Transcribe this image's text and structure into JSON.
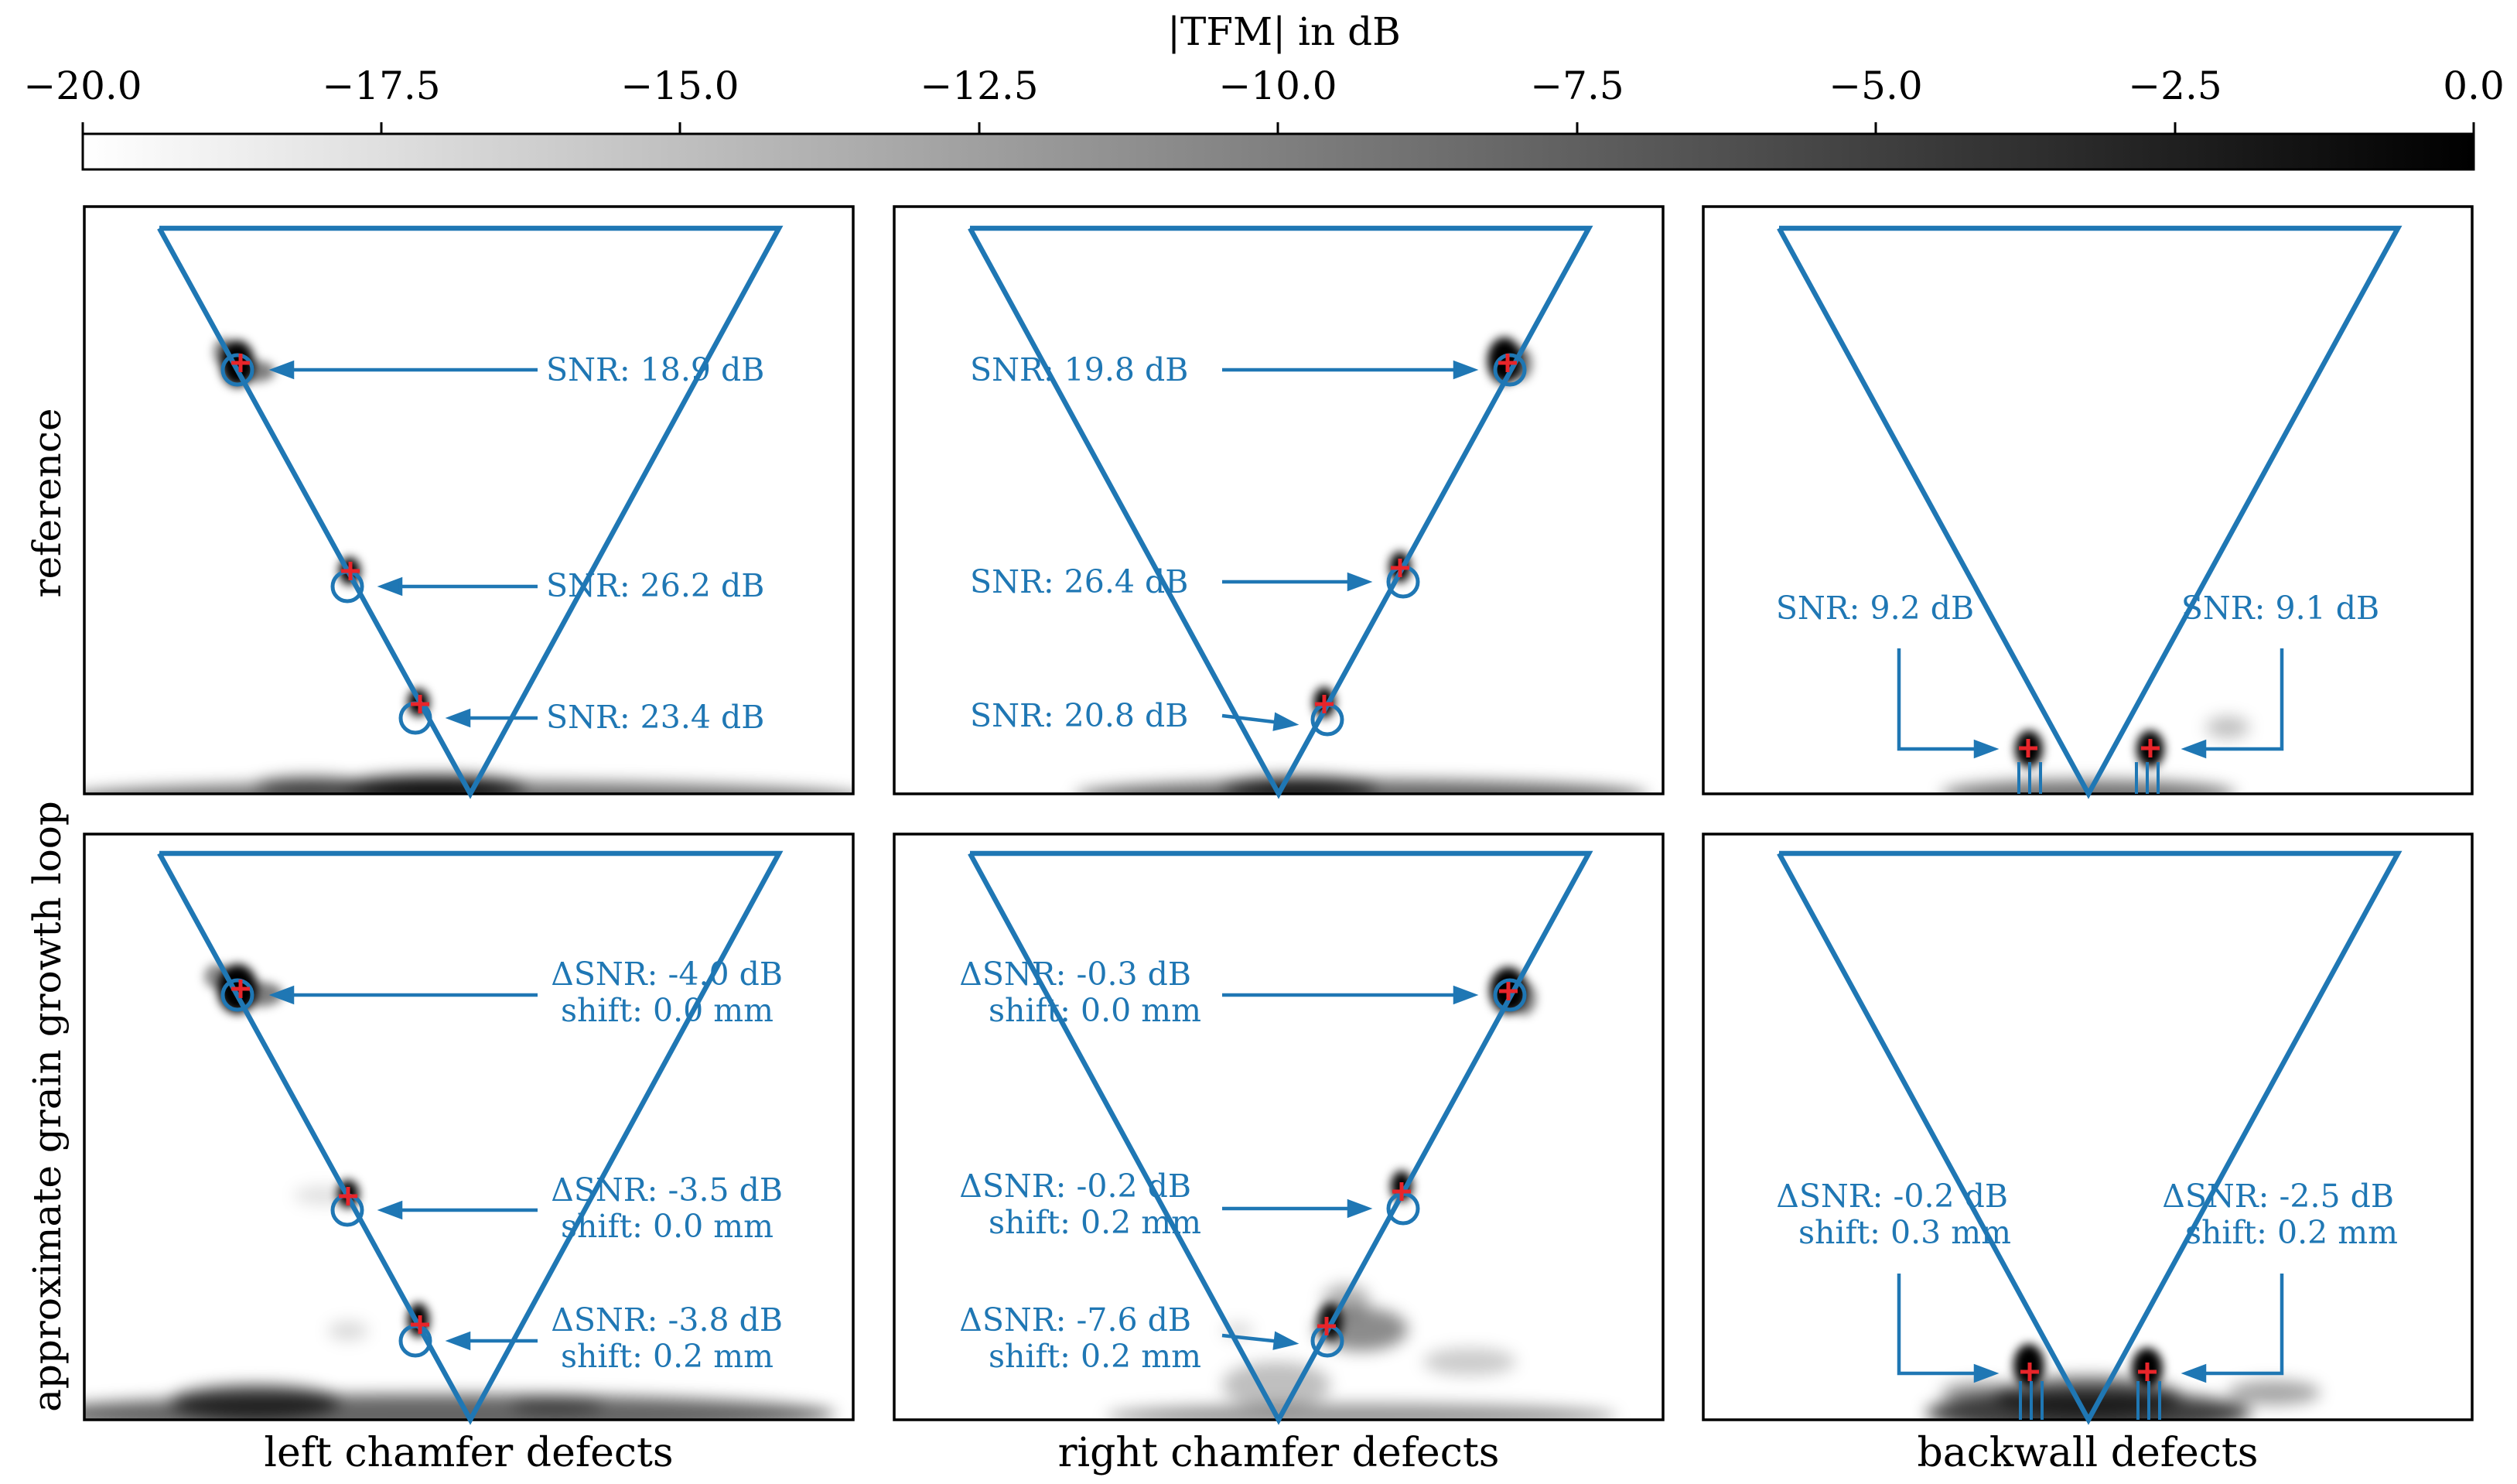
{
  "colorbar": {
    "label": "|TFM| in dB",
    "tick_labels": [
      "−20.0",
      "−17.5",
      "−15.0",
      "−12.5",
      "−10.0",
      "−7.5",
      "−5.0",
      "−2.5",
      "0.0"
    ],
    "range": [
      -20.0,
      0.0
    ]
  },
  "row_labels": [
    "reference",
    "approximate grain growth loop"
  ],
  "column_labels": [
    "left chamfer defects",
    "right chamfer defects",
    "backwall defects"
  ],
  "panels": {
    "ref_left": {
      "annotations": [
        {
          "line1": "SNR: 18.9 dB"
        },
        {
          "line1": "SNR: 26.2 dB"
        },
        {
          "line1": "SNR: 23.4 dB"
        }
      ]
    },
    "ref_right": {
      "annotations": [
        {
          "line1": "SNR: 19.8 dB"
        },
        {
          "line1": "SNR: 26.4 dB"
        },
        {
          "line1": "SNR: 20.8 dB"
        }
      ]
    },
    "ref_back": {
      "annotations": [
        {
          "line1": "SNR: 9.2 dB"
        },
        {
          "line1": "SNR: 9.1 dB"
        }
      ]
    },
    "loop_left": {
      "annotations": [
        {
          "line1": "ΔSNR: -4.0 dB",
          "line2": "shift: 0.0 mm"
        },
        {
          "line1": "ΔSNR: -3.5 dB",
          "line2": "shift: 0.0 mm"
        },
        {
          "line1": "ΔSNR: -3.8 dB",
          "line2": "shift: 0.2 mm"
        }
      ]
    },
    "loop_right": {
      "annotations": [
        {
          "line1": "ΔSNR: -0.3 dB",
          "line2": "shift: 0.0 mm"
        },
        {
          "line1": "ΔSNR: -0.2 dB",
          "line2": "shift: 0.2 mm"
        },
        {
          "line1": "ΔSNR: -7.6 dB",
          "line2": "shift: 0.2 mm"
        }
      ]
    },
    "loop_back": {
      "annotations": [
        {
          "line1": "ΔSNR: -0.2 dB",
          "line2": "shift: 0.3 mm"
        },
        {
          "line1": "ΔSNR: -2.5 dB",
          "line2": "shift: 0.2 mm"
        }
      ]
    }
  },
  "colors": {
    "annotation": "#1f77b4",
    "marker": "#e8252a",
    "frame": "#000000"
  }
}
